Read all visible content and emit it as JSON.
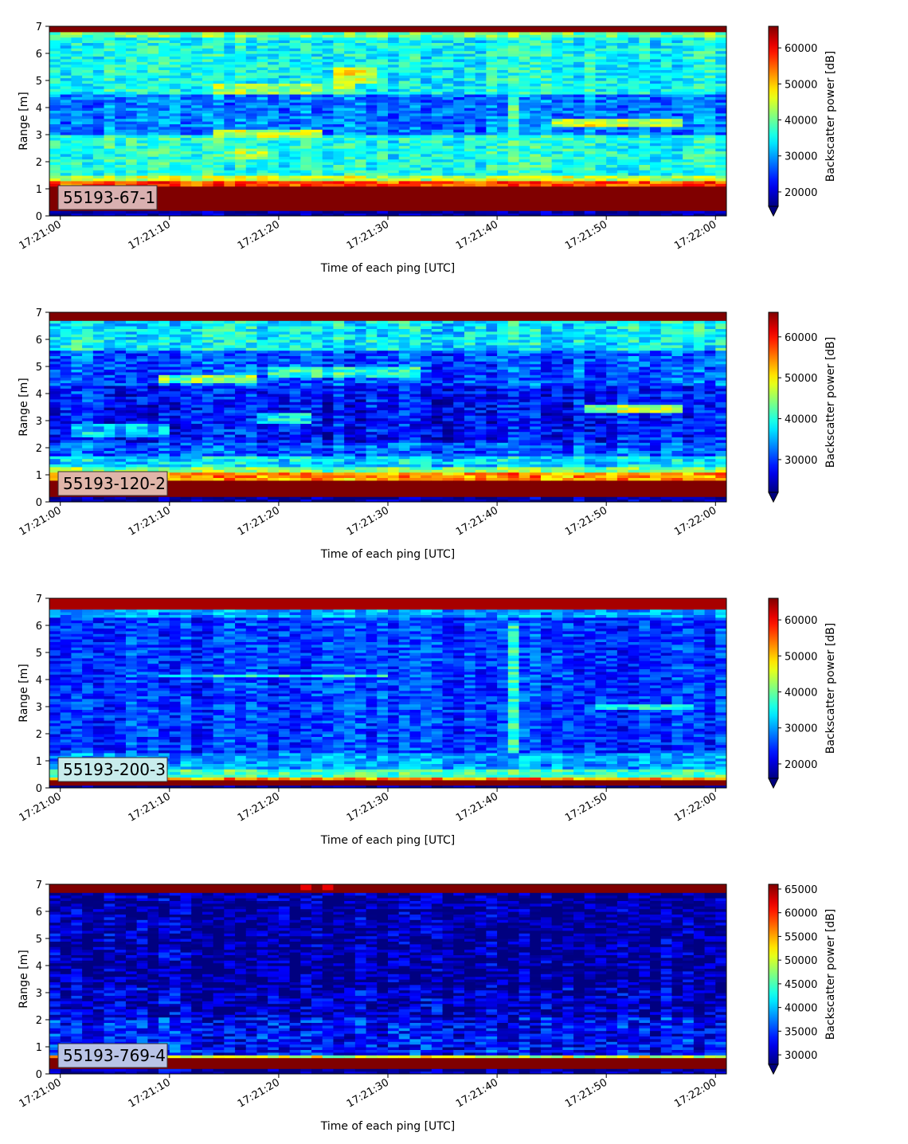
{
  "chart_data": [
    {
      "type": "heatmap",
      "panel_label": "55193-67-1",
      "label_box_color": "#d9b0b0",
      "xlabel": "Time of each ping [UTC]",
      "ylabel": "Range [m]",
      "x_tick_labels": [
        "17:21:00",
        "17:21:10",
        "17:21:20",
        "17:21:30",
        "17:21:40",
        "17:21:50",
        "17:22:00"
      ],
      "x_range": [
        "17:20:59",
        "17:22:00"
      ],
      "y_ticks": [
        0,
        1,
        2,
        3,
        4,
        5,
        6,
        7
      ],
      "ylim": [
        0,
        7
      ],
      "colorbar": {
        "label": "Backscatter power [dB]",
        "ticks": [
          20000,
          30000,
          40000,
          50000,
          60000
        ],
        "range": [
          16000,
          66000
        ],
        "extend": "min"
      },
      "bands": [
        {
          "from": 0,
          "to": 0.2,
          "value": 17000
        },
        {
          "from": 0.2,
          "to": 1.1,
          "value": 66000
        },
        {
          "from": 1.1,
          "to": 1.3,
          "value": 56000
        },
        {
          "from": 1.3,
          "to": 1.5,
          "value": 44000
        },
        {
          "from": 1.5,
          "to": 3.0,
          "value": 36000
        },
        {
          "from": 3.0,
          "to": 4.5,
          "value": 28000
        },
        {
          "from": 4.5,
          "to": 6.6,
          "value": 35000
        },
        {
          "from": 6.6,
          "to": 6.75,
          "value": 40000
        },
        {
          "from": 6.75,
          "to": 7.0,
          "value": 66000
        }
      ],
      "features": [
        {
          "t0": 14,
          "t1": 24,
          "r0": 2.9,
          "r1": 3.2,
          "value": 44000
        },
        {
          "t0": 15,
          "t1": 19,
          "r0": 2.1,
          "r1": 2.5,
          "value": 43000
        },
        {
          "t0": 14,
          "t1": 27,
          "r0": 4.55,
          "r1": 4.85,
          "value": 42000
        },
        {
          "t0": 25,
          "t1": 29,
          "r0": 4.9,
          "r1": 5.5,
          "value": 46000
        },
        {
          "t0": 45,
          "t1": 57,
          "r0": 3.3,
          "r1": 3.6,
          "value": 45000
        },
        {
          "t0": 41,
          "t1": 42,
          "r0": 1.5,
          "r1": 4.4,
          "value": 37000
        }
      ]
    },
    {
      "type": "heatmap",
      "panel_label": "55193-120-2",
      "label_box_color": "#dfb5a9",
      "xlabel": "Time of each ping [UTC]",
      "ylabel": "Range [m]",
      "x_tick_labels": [
        "17:21:00",
        "17:21:10",
        "17:21:20",
        "17:21:30",
        "17:21:40",
        "17:21:50",
        "17:22:00"
      ],
      "x_range": [
        "17:20:59",
        "17:22:00"
      ],
      "y_ticks": [
        0,
        1,
        2,
        3,
        4,
        5,
        6,
        7
      ],
      "ylim": [
        0,
        7
      ],
      "colorbar": {
        "label": "Backscatter power [dB]",
        "ticks": [
          30000,
          40000,
          50000,
          60000
        ],
        "range": [
          22000,
          66000
        ],
        "extend": "min"
      },
      "bands": [
        {
          "from": 0,
          "to": 0.2,
          "value": 23000
        },
        {
          "from": 0.2,
          "to": 0.85,
          "value": 66000
        },
        {
          "from": 0.85,
          "to": 1.05,
          "value": 54000
        },
        {
          "from": 1.05,
          "to": 1.3,
          "value": 44000
        },
        {
          "from": 1.3,
          "to": 1.7,
          "value": 37000
        },
        {
          "from": 1.7,
          "to": 2.2,
          "value": 31000
        },
        {
          "from": 2.2,
          "to": 4.3,
          "value": 28000
        },
        {
          "from": 4.3,
          "to": 5.6,
          "value": 31000
        },
        {
          "from": 5.6,
          "to": 6.7,
          "value": 38000
        },
        {
          "from": 6.7,
          "to": 7.0,
          "value": 66000
        }
      ],
      "features": [
        {
          "t0": 9,
          "t1": 18,
          "r0": 4.4,
          "r1": 4.7,
          "value": 44000
        },
        {
          "t0": 19,
          "t1": 33,
          "r0": 4.6,
          "r1": 5.0,
          "value": 40000
        },
        {
          "t0": 48,
          "t1": 57,
          "r0": 3.3,
          "r1": 3.6,
          "value": 45000
        },
        {
          "t0": 18,
          "t1": 23,
          "r0": 2.9,
          "r1": 3.3,
          "value": 38000
        },
        {
          "t0": 1,
          "t1": 10,
          "r0": 2.4,
          "r1": 2.9,
          "value": 36000
        }
      ]
    },
    {
      "type": "heatmap",
      "panel_label": "55193-200-3",
      "label_box_color": "#c8ecec",
      "xlabel": "Time of each ping [UTC]",
      "ylabel": "Range [m]",
      "x_tick_labels": [
        "17:21:00",
        "17:21:10",
        "17:21:20",
        "17:21:30",
        "17:21:40",
        "17:21:50",
        "17:22:00"
      ],
      "x_range": [
        "17:20:59",
        "17:22:00"
      ],
      "y_ticks": [
        0,
        1,
        2,
        3,
        4,
        5,
        6,
        7
      ],
      "ylim": [
        0,
        7
      ],
      "colorbar": {
        "label": "Backscatter power [dB]",
        "ticks": [
          20000,
          30000,
          40000,
          50000,
          60000
        ],
        "range": [
          16000,
          66000
        ],
        "extend": "min"
      },
      "bands": [
        {
          "from": 0,
          "to": 0.1,
          "value": 17000
        },
        {
          "from": 0.1,
          "to": 0.3,
          "value": 66000
        },
        {
          "from": 0.3,
          "to": 0.45,
          "value": 52000
        },
        {
          "from": 0.45,
          "to": 0.7,
          "value": 38000
        },
        {
          "from": 0.7,
          "to": 1.3,
          "value": 30000
        },
        {
          "from": 1.3,
          "to": 6.3,
          "value": 25000
        },
        {
          "from": 6.3,
          "to": 6.55,
          "value": 30000
        },
        {
          "from": 6.55,
          "to": 7.0,
          "value": 64000
        }
      ],
      "features": [
        {
          "t0": 9,
          "t1": 30,
          "r0": 4.1,
          "r1": 4.25,
          "value": 36000
        },
        {
          "t0": 49,
          "t1": 58,
          "r0": 2.95,
          "r1": 3.1,
          "value": 36000
        },
        {
          "t0": 41,
          "t1": 42,
          "r0": 1.3,
          "r1": 6.1,
          "value": 36000
        }
      ]
    },
    {
      "type": "heatmap",
      "panel_label": "55193-769-4",
      "label_box_color": "#b9c3e6",
      "xlabel": "Time of each ping [UTC]",
      "ylabel": "Range [m]",
      "x_tick_labels": [
        "17:21:00",
        "17:21:10",
        "17:21:20",
        "17:21:30",
        "17:21:40",
        "17:21:50",
        "17:22:00"
      ],
      "x_range": [
        "17:20:59",
        "17:22:00"
      ],
      "y_ticks": [
        0,
        1,
        2,
        3,
        4,
        5,
        6,
        7
      ],
      "ylim": [
        0,
        7
      ],
      "colorbar": {
        "label": "Backscatter power [dB]",
        "ticks": [
          30000,
          35000,
          40000,
          45000,
          50000,
          55000,
          60000,
          65000
        ],
        "range": [
          28000,
          66000
        ],
        "extend": "min"
      },
      "bands": [
        {
          "from": 0,
          "to": 0.2,
          "value": 28500
        },
        {
          "from": 0.2,
          "to": 0.6,
          "value": 66000
        },
        {
          "from": 0.6,
          "to": 0.7,
          "value": 50000
        },
        {
          "from": 0.7,
          "to": 2.1,
          "value": 33000
        },
        {
          "from": 2.1,
          "to": 3.2,
          "value": 30500
        },
        {
          "from": 3.2,
          "to": 6.65,
          "value": 29000
        },
        {
          "from": 6.65,
          "to": 6.72,
          "value": 48000
        },
        {
          "from": 6.72,
          "to": 7.0,
          "value": 66000
        }
      ],
      "features": [
        {
          "t0": 22,
          "t1": 23,
          "r0": 6.8,
          "r1": 7.0,
          "value": 62000
        },
        {
          "t0": 24,
          "t1": 25,
          "r0": 6.8,
          "r1": 7.0,
          "value": 62000
        }
      ]
    }
  ]
}
